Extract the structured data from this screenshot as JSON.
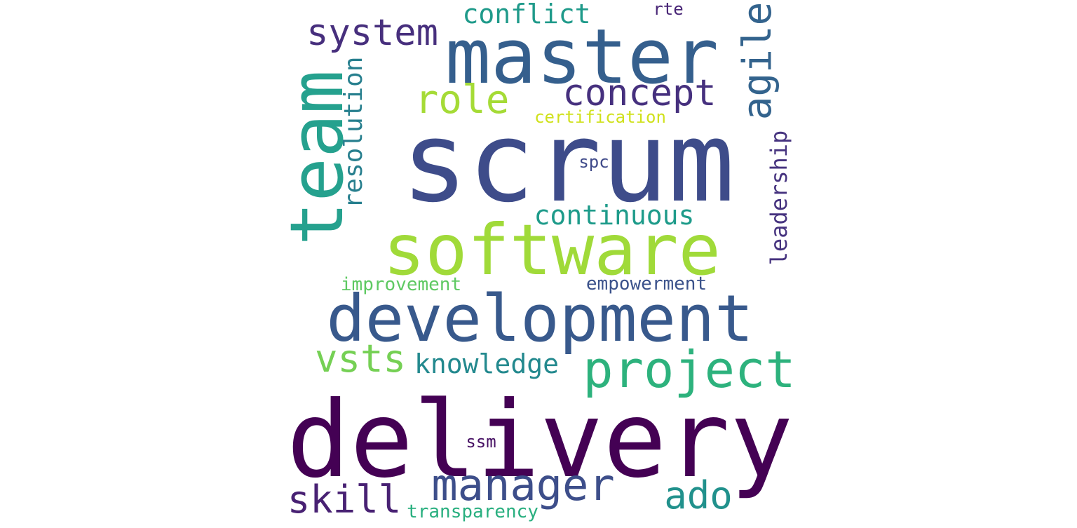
{
  "words": [
    {
      "text": "scrum",
      "color": "#3e4c8a"
    },
    {
      "text": "delivery",
      "color": "#440154"
    },
    {
      "text": "master",
      "color": "#355f8d"
    },
    {
      "text": "development",
      "color": "#38598c"
    },
    {
      "text": "software",
      "color": "#a0da39"
    },
    {
      "text": "team",
      "color": "#25a18e"
    },
    {
      "text": "project",
      "color": "#2db27d"
    },
    {
      "text": "manager",
      "color": "#3d4e8a"
    },
    {
      "text": "system",
      "color": "#472f7d"
    },
    {
      "text": "role",
      "color": "#a5db36"
    },
    {
      "text": "concept",
      "color": "#46307e"
    },
    {
      "text": "agile",
      "color": "#33638d"
    },
    {
      "text": "conflict",
      "color": "#1f9a8a"
    },
    {
      "text": "resolution",
      "color": "#277f8e"
    },
    {
      "text": "vsts",
      "color": "#75d054"
    },
    {
      "text": "knowledge",
      "color": "#23898e"
    },
    {
      "text": "skill",
      "color": "#482173"
    },
    {
      "text": "ado",
      "color": "#21918c"
    },
    {
      "text": "continuous",
      "color": "#1e9b8a"
    },
    {
      "text": "leadership",
      "color": "#46337f"
    },
    {
      "text": "improvement",
      "color": "#5ec962"
    },
    {
      "text": "empowerment",
      "color": "#3b528b"
    },
    {
      "text": "certification",
      "color": "#d0e11c"
    },
    {
      "text": "spc",
      "color": "#3e4989"
    },
    {
      "text": "rte",
      "color": "#482576"
    },
    {
      "text": "ssm",
      "color": "#471164"
    },
    {
      "text": "transparency",
      "color": "#29af7f"
    }
  ]
}
